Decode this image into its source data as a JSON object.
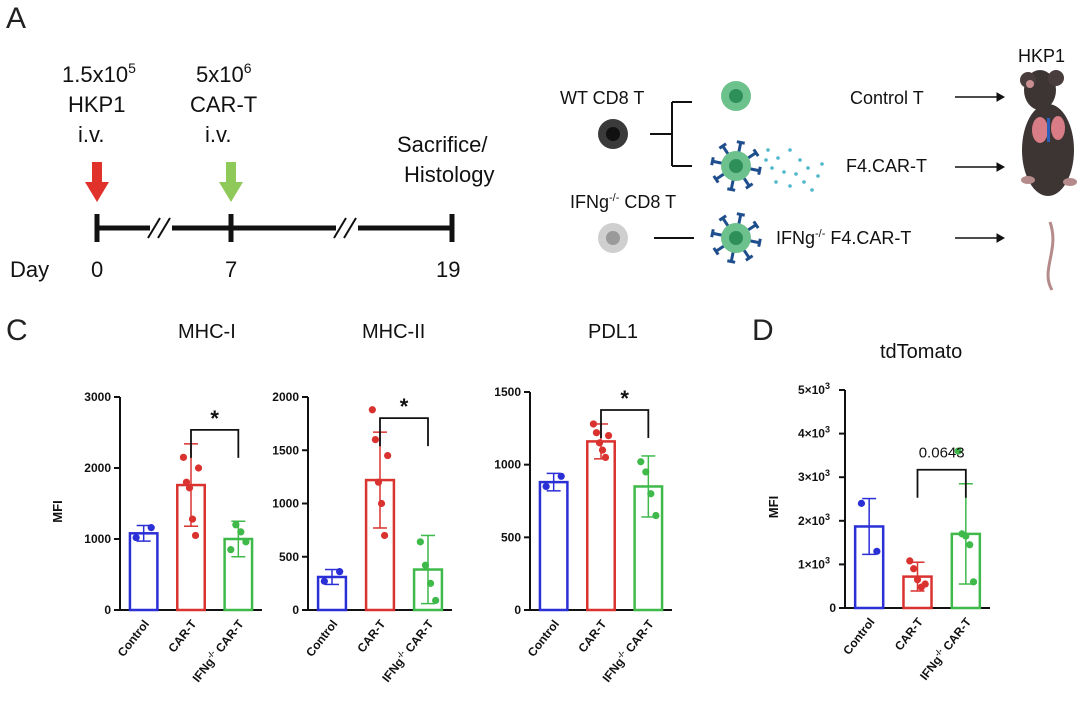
{
  "panel_a": {
    "letter": "A",
    "inject1": {
      "line1": "1.5x10",
      "sup1": "5",
      "line2": "HKP1",
      "line3": "i.v."
    },
    "inject2": {
      "line1": "5x10",
      "sup1": "6",
      "line2": "CAR-T",
      "line3": "i.v."
    },
    "end": {
      "line1": "Sacrifice/",
      "line2": "Histology"
    },
    "day_label": "Day",
    "days": [
      "0",
      "7",
      "19"
    ],
    "wt_label": "WT CD8 T",
    "ko_label_pre": "IFNg",
    "ko_label_sup": "-/-",
    "ko_label_post": " CD8 T",
    "outcomes": [
      "Control T",
      "F4.CAR-T"
    ],
    "outcome_ko_pre": "IFNg",
    "outcome_ko_sup": "-/-",
    "outcome_ko_post": " F4.CAR-T",
    "mouse_label": "HKP1",
    "colors": {
      "red_arrow": "#e0312a",
      "green_arrow": "#8fc95a",
      "cell_green": "#3fae6d",
      "receptor": "#1f4e8c"
    }
  },
  "panel_c_letter": "C",
  "panel_d_letter": "D",
  "chart_data": [
    {
      "type": "bar",
      "title": "MHC-I",
      "ylabel": "MFI",
      "categories": [
        "Control",
        "CAR-T",
        "IFNg-/- CAR-T"
      ],
      "values": [
        1080,
        1760,
        1000
      ],
      "errors": [
        110,
        580,
        250
      ],
      "points": [
        [
          1020,
          1160
        ],
        [
          2150,
          1800,
          1720,
          1280,
          1050,
          2000
        ],
        [
          850,
          1200,
          1100,
          960
        ]
      ],
      "ylim": [
        0,
        3000
      ],
      "yticks": [
        "0",
        "1000",
        "2000",
        "3000"
      ],
      "ytick_values": [
        0,
        1000,
        2000,
        3000
      ],
      "significance": {
        "from": 1,
        "to": 2,
        "label": "*"
      }
    },
    {
      "type": "bar",
      "title": "MHC-II",
      "ylabel": "",
      "categories": [
        "Control",
        "CAR-T",
        "IFNg-/- CAR-T"
      ],
      "values": [
        310,
        1220,
        380
      ],
      "errors": [
        70,
        450,
        320
      ],
      "points": [
        [
          270,
          360
        ],
        [
          1880,
          1600,
          1200,
          1000,
          700,
          1450
        ],
        [
          640,
          420,
          250,
          90
        ]
      ],
      "ylim": [
        0,
        2000
      ],
      "yticks": [
        "0",
        "500",
        "1000",
        "1500",
        "2000"
      ],
      "ytick_values": [
        0,
        500,
        1000,
        1500,
        2000
      ],
      "significance": {
        "from": 1,
        "to": 2,
        "label": "*"
      }
    },
    {
      "type": "bar",
      "title": "PDL1",
      "ylabel": "",
      "categories": [
        "Control",
        "CAR-T",
        "IFNg-/- CAR-T"
      ],
      "values": [
        880,
        1160,
        850
      ],
      "errors": [
        60,
        120,
        210
      ],
      "points": [
        [
          850,
          920
        ],
        [
          1280,
          1220,
          1150,
          1100,
          1050,
          1200
        ],
        [
          1020,
          950,
          800,
          650
        ]
      ],
      "ylim": [
        0,
        1500
      ],
      "yticks": [
        "0",
        "500",
        "1000",
        "1500"
      ],
      "ytick_values": [
        0,
        500,
        1000,
        1500
      ],
      "significance": {
        "from": 1,
        "to": 2,
        "label": "*"
      }
    },
    {
      "type": "bar",
      "title": "tdTomato",
      "ylabel": "MFI",
      "categories": [
        "Control",
        "CAR-T",
        "IFNg-/- CAR-T"
      ],
      "values": [
        1870,
        720,
        1700
      ],
      "errors": [
        640,
        330,
        1150
      ],
      "points": [
        [
          2400,
          1300
        ],
        [
          1080,
          900,
          650,
          480,
          550
        ],
        [
          3600,
          1700,
          1650,
          1450,
          600
        ]
      ],
      "ylim": [
        0,
        5000
      ],
      "yticks": [
        "0",
        "1×10",
        "2×10",
        "3×10",
        "4×10",
        "5×10"
      ],
      "ytick_sups": [
        "",
        "3",
        "3",
        "3",
        "3",
        "3"
      ],
      "ytick_values": [
        0,
        1000,
        2000,
        3000,
        4000,
        5000
      ],
      "significance": {
        "from": 1,
        "to": 2,
        "label": "0.0643"
      }
    }
  ],
  "category_label_parts": {
    "control": "Control",
    "cart": "CAR-T",
    "ko_pre": "IFNg",
    "ko_sup": "-/-",
    "ko_post": " CAR-T"
  },
  "series_colors": [
    "#2b2fd6",
    "#d9322f",
    "#3fb94a"
  ]
}
